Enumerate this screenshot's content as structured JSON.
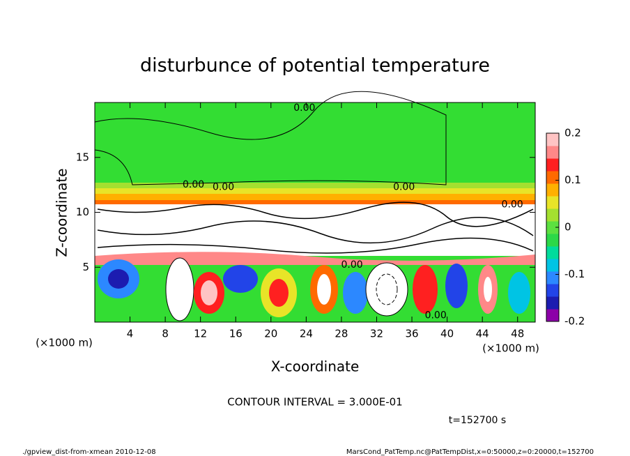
{
  "chart_data": {
    "type": "contour",
    "title": "disturbunce of potential temperature",
    "xlabel": "X-coordinate",
    "ylabel": "Z-coordinate",
    "x_unit": "(×1000 m)",
    "xlim": [
      0,
      50
    ],
    "ylim": [
      0,
      20
    ],
    "xticks": [
      4,
      8,
      12,
      16,
      20,
      24,
      28,
      32,
      36,
      40,
      44,
      48
    ],
    "yticks": [
      5,
      10,
      15
    ],
    "colorbar": {
      "lim": [
        -0.2,
        0.2
      ],
      "ticks": [
        -0.2,
        -0.1,
        0,
        0.1,
        0.2
      ],
      "colors": [
        "#8c00a8",
        "#1c1cb0",
        "#2244e8",
        "#2c88ff",
        "#00c4e4",
        "#00dc9c",
        "#2cd848",
        "#5ce040",
        "#a4e030",
        "#e8e428",
        "#ffb000",
        "#ff6a00",
        "#ff2020",
        "#ff8888",
        "#ffc4c4"
      ]
    },
    "contour_labels": [
      {
        "x": 23.8,
        "z": 19.5,
        "label": "0.00"
      },
      {
        "x": 11.2,
        "z": 12.5,
        "label": "0.00"
      },
      {
        "x": 14.6,
        "z": 12.3,
        "label": "0.00"
      },
      {
        "x": 35.1,
        "z": 12.3,
        "label": "0.00"
      },
      {
        "x": 47.4,
        "z": 10.7,
        "label": "0.00"
      },
      {
        "x": 29.2,
        "z": 5.2,
        "label": "0.00"
      },
      {
        "x": 38.7,
        "z": 0.6,
        "label": "0.00"
      }
    ],
    "contour_interval": "CONTOUR INTERVAL = 3.000E-01",
    "time_label": "t=152700 s",
    "footer_left": "./gpview_dist-from-xmean  2010-12-08",
    "footer_right": "MarsCond_PatTemp.nc@PatTempDist,x=0:50000,z=0:20000,t=152700"
  }
}
